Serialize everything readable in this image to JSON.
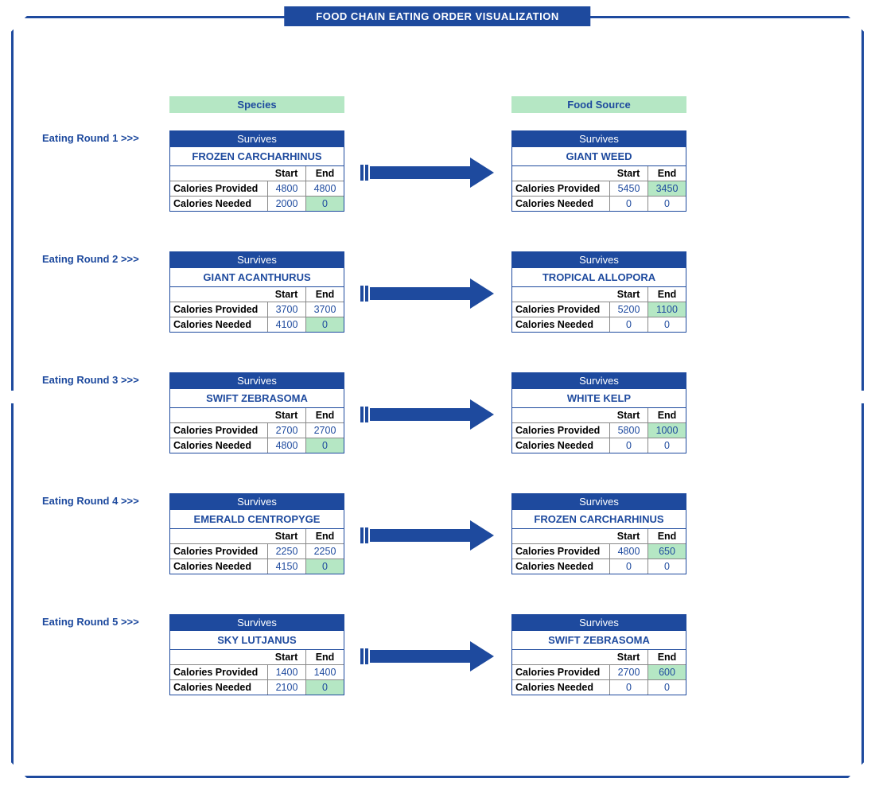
{
  "title": "FOOD CHAIN EATING ORDER VISUALIZATION",
  "columns": {
    "species": "Species",
    "food": "Food Source"
  },
  "rowLabels": {
    "provided": "Calories Provided",
    "needed": "Calories Needed"
  },
  "colHeads": {
    "start": "Start",
    "end": "End"
  },
  "status": "Survives",
  "colors": {
    "primary": "#1e4a9e",
    "highlight": "#b5e7c4"
  },
  "rounds": [
    {
      "label": "Eating Round 1 >>>",
      "species": {
        "name": "FROZEN CARCHARHINUS",
        "provided": {
          "start": "4800",
          "end": "4800",
          "end_hl": false
        },
        "needed": {
          "start": "2000",
          "end": "0",
          "end_hl": true
        }
      },
      "food": {
        "name": "GIANT WEED",
        "provided": {
          "start": "5450",
          "end": "3450",
          "end_hl": true
        },
        "needed": {
          "start": "0",
          "end": "0",
          "end_hl": false
        }
      }
    },
    {
      "label": "Eating Round 2 >>>",
      "species": {
        "name": "GIANT ACANTHURUS",
        "provided": {
          "start": "3700",
          "end": "3700",
          "end_hl": false
        },
        "needed": {
          "start": "4100",
          "end": "0",
          "end_hl": true
        }
      },
      "food": {
        "name": "TROPICAL ALLOPORA",
        "provided": {
          "start": "5200",
          "end": "1100",
          "end_hl": true
        },
        "needed": {
          "start": "0",
          "end": "0",
          "end_hl": false
        }
      }
    },
    {
      "label": "Eating Round 3 >>>",
      "species": {
        "name": "SWIFT ZEBRASOMA",
        "provided": {
          "start": "2700",
          "end": "2700",
          "end_hl": false
        },
        "needed": {
          "start": "4800",
          "end": "0",
          "end_hl": true
        }
      },
      "food": {
        "name": "WHITE KELP",
        "provided": {
          "start": "5800",
          "end": "1000",
          "end_hl": true
        },
        "needed": {
          "start": "0",
          "end": "0",
          "end_hl": false
        }
      }
    },
    {
      "label": "Eating Round 4 >>>",
      "species": {
        "name": "EMERALD CENTROPYGE",
        "provided": {
          "start": "2250",
          "end": "2250",
          "end_hl": false
        },
        "needed": {
          "start": "4150",
          "end": "0",
          "end_hl": true
        }
      },
      "food": {
        "name": "FROZEN CARCHARHINUS",
        "provided": {
          "start": "4800",
          "end": "650",
          "end_hl": true
        },
        "needed": {
          "start": "0",
          "end": "0",
          "end_hl": false
        }
      }
    },
    {
      "label": "Eating Round 5 >>>",
      "species": {
        "name": "SKY LUTJANUS",
        "provided": {
          "start": "1400",
          "end": "1400",
          "end_hl": false
        },
        "needed": {
          "start": "2100",
          "end": "0",
          "end_hl": true
        }
      },
      "food": {
        "name": "SWIFT ZEBRASOMA",
        "provided": {
          "start": "2700",
          "end": "600",
          "end_hl": true
        },
        "needed": {
          "start": "0",
          "end": "0",
          "end_hl": false
        }
      }
    }
  ]
}
